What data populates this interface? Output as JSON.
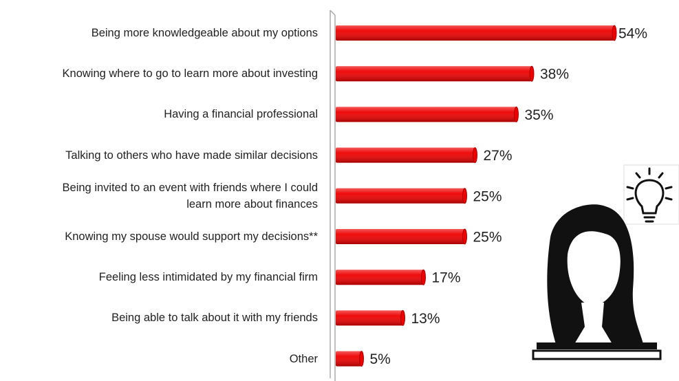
{
  "chart_data": {
    "type": "barh",
    "categories": [
      "Being more knowledgeable about my options",
      "Knowing where to go to learn more about investing",
      "Having a financial professional",
      "Talking to others who have made similar decisions",
      "Being invited to an event with friends where I could\nlearn more about finances",
      "Knowing my spouse would support my decisions**",
      "Feeling less intimidated by my financial firm",
      "Being able to talk about it with my friends",
      "Other"
    ],
    "values": [
      54,
      38,
      35,
      27,
      25,
      25,
      17,
      13,
      5
    ],
    "value_labels": [
      "54%",
      "38%",
      "35%",
      "27%",
      "25%",
      "25%",
      "17%",
      "13%",
      "5%"
    ],
    "color": "#ee0000"
  }
}
